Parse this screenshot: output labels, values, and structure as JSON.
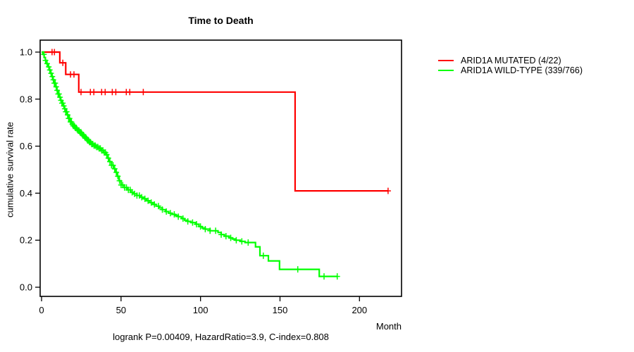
{
  "title": "Time to Death",
  "subtitle": "logrank P=0.00409, HazardRatio=3.9, C-index=0.808",
  "x_axis": {
    "label": "Month",
    "tick_values": [
      0,
      50,
      100,
      150,
      200
    ]
  },
  "y_axis": {
    "label": "cumulative survival rate",
    "tick_values": [
      0.0,
      0.2,
      0.4,
      0.6,
      0.8,
      1.0
    ]
  },
  "legend": [
    {
      "label": "ARID1A MUTATED (4/22)",
      "color": "#ff0000"
    },
    {
      "label": "ARID1A WILD-TYPE (339/766)",
      "color": "#00ff00"
    }
  ],
  "chart_data": {
    "type": "line",
    "subtype": "kaplan-meier-step",
    "title": "Time to Death",
    "xlabel": "Month",
    "ylabel": "cumulative survival rate",
    "annotation": "logrank P=0.00409, HazardRatio=3.9, C-index=0.808",
    "xlim": [
      0,
      226
    ],
    "ylim": [
      0,
      1
    ],
    "grid": false,
    "legend_position": "right-outside",
    "series": [
      {
        "name": "ARID1A MUTATED (4/22)",
        "color": "#ff0000",
        "steps": [
          [
            0,
            1.0
          ],
          [
            11.5,
            0.9545
          ],
          [
            15.2,
            0.905
          ],
          [
            23.4,
            0.83
          ],
          [
            159.5,
            0.41
          ],
          [
            218,
            0.41
          ]
        ],
        "censor_times": [
          6.6,
          8.1,
          13.4,
          18.2,
          20.4,
          24.8,
          30.7,
          32.9,
          37.8,
          40,
          44.5,
          46.7,
          53.3,
          55.5,
          64,
          218
        ]
      },
      {
        "name": "ARID1A WILD-TYPE (339/766)",
        "color": "#00ff00",
        "steps": [
          [
            0,
            1.0
          ],
          [
            0.8,
            0.99
          ],
          [
            1.6,
            0.977
          ],
          [
            2.4,
            0.965
          ],
          [
            3.2,
            0.951
          ],
          [
            4,
            0.937
          ],
          [
            4.8,
            0.924
          ],
          [
            5.6,
            0.91
          ],
          [
            6.4,
            0.896
          ],
          [
            7.2,
            0.882
          ],
          [
            8,
            0.868
          ],
          [
            8.8,
            0.852
          ],
          [
            9.6,
            0.837
          ],
          [
            10.4,
            0.822
          ],
          [
            11.2,
            0.808
          ],
          [
            12,
            0.795
          ],
          [
            12.8,
            0.783
          ],
          [
            13.6,
            0.771
          ],
          [
            14.4,
            0.759
          ],
          [
            15.2,
            0.746
          ],
          [
            16,
            0.733
          ],
          [
            17,
            0.718
          ],
          [
            18,
            0.703
          ],
          [
            19,
            0.694
          ],
          [
            20,
            0.686
          ],
          [
            21,
            0.678
          ],
          [
            22,
            0.671
          ],
          [
            23,
            0.666
          ],
          [
            24,
            0.659
          ],
          [
            25,
            0.652
          ],
          [
            26,
            0.645
          ],
          [
            27,
            0.638
          ],
          [
            28,
            0.631
          ],
          [
            29,
            0.624
          ],
          [
            30,
            0.617
          ],
          [
            31.5,
            0.609
          ],
          [
            33,
            0.602
          ],
          [
            34.5,
            0.596
          ],
          [
            36,
            0.59
          ],
          [
            37.5,
            0.582
          ],
          [
            39,
            0.573
          ],
          [
            40.3,
            0.564
          ],
          [
            41.5,
            0.549
          ],
          [
            42.7,
            0.534
          ],
          [
            44,
            0.519
          ],
          [
            45.2,
            0.504
          ],
          [
            46.4,
            0.489
          ],
          [
            47.6,
            0.472
          ],
          [
            48.8,
            0.453
          ],
          [
            50,
            0.435
          ],
          [
            52,
            0.424
          ],
          [
            54,
            0.414
          ],
          [
            56,
            0.404
          ],
          [
            58,
            0.397
          ],
          [
            60,
            0.39
          ],
          [
            62,
            0.383
          ],
          [
            64,
            0.376
          ],
          [
            66,
            0.368
          ],
          [
            68,
            0.36
          ],
          [
            70,
            0.352
          ],
          [
            72,
            0.345
          ],
          [
            74,
            0.337
          ],
          [
            76,
            0.33
          ],
          [
            78,
            0.322
          ],
          [
            80,
            0.315
          ],
          [
            82,
            0.31
          ],
          [
            84,
            0.305
          ],
          [
            86,
            0.3
          ],
          [
            88,
            0.292
          ],
          [
            90,
            0.285
          ],
          [
            92,
            0.28
          ],
          [
            94,
            0.275
          ],
          [
            97,
            0.268
          ],
          [
            99,
            0.258
          ],
          [
            101,
            0.252
          ],
          [
            103,
            0.247
          ],
          [
            106,
            0.24
          ],
          [
            111,
            0.233
          ],
          [
            113,
            0.224
          ],
          [
            115,
            0.217
          ],
          [
            118,
            0.21
          ],
          [
            120,
            0.205
          ],
          [
            122,
            0.2
          ],
          [
            125,
            0.195
          ],
          [
            128,
            0.19
          ],
          [
            134.6,
            0.172
          ],
          [
            137.4,
            0.134
          ],
          [
            142.7,
            0.112
          ],
          [
            149.7,
            0.076
          ],
          [
            174.7,
            0.046
          ],
          [
            186,
            0.046
          ]
        ],
        "censor_times": [
          1.5,
          2.5,
          3.5,
          4.5,
          5.2,
          6,
          6.8,
          7.4,
          8,
          8.6,
          9.2,
          9.8,
          10.4,
          11,
          11.6,
          12.2,
          12.8,
          13.4,
          14,
          14.6,
          15.2,
          15.8,
          16.4,
          17,
          17.6,
          18.2,
          18.8,
          19.4,
          20,
          20.6,
          21.2,
          21.8,
          22.4,
          23,
          23.6,
          24.2,
          24.8,
          25.4,
          26,
          26.6,
          27.2,
          27.8,
          28.4,
          29,
          29.6,
          30.2,
          30.8,
          31.5,
          32.2,
          33,
          33.8,
          34.6,
          35.4,
          36.2,
          37,
          37.8,
          38.6,
          39.4,
          40.2,
          41,
          42,
          43,
          44,
          45,
          46,
          47,
          48,
          49,
          50,
          51,
          52.2,
          53.4,
          54.6,
          55.8,
          57,
          58.5,
          60,
          61.5,
          63,
          65,
          67,
          69,
          71,
          73.5,
          76,
          78.5,
          81,
          83.5,
          86,
          89,
          92,
          95,
          97.5,
          100,
          103,
          106,
          109.5,
          113,
          116,
          119,
          122.5,
          126,
          130,
          139.5,
          161.2,
          177.7,
          186
        ]
      }
    ]
  }
}
